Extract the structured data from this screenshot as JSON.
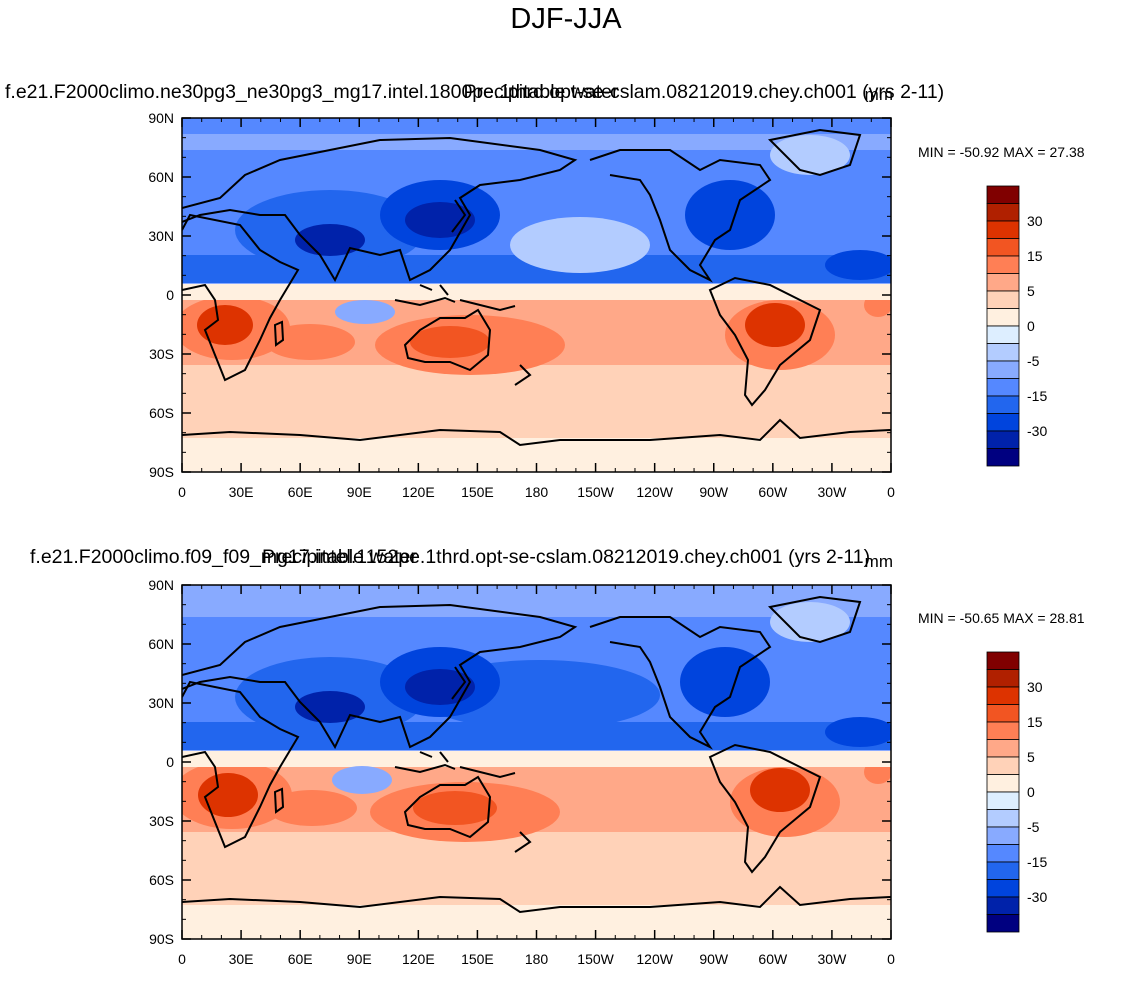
{
  "figure": {
    "title": "DJF-JJA"
  },
  "colorbar": {
    "colors": [
      "#000080",
      "#0022aa",
      "#0044dd",
      "#2266ee",
      "#5588ff",
      "#88aaff",
      "#b3ccff",
      "#ddeeff",
      "#fff0e0",
      "#ffd2b8",
      "#ffa888",
      "#ff7f55",
      "#f25522",
      "#dd3300",
      "#b02000",
      "#800000"
    ],
    "labels": [
      "-30",
      "-15",
      "-5",
      "0",
      "5",
      "15",
      "30"
    ]
  },
  "axes": {
    "lon_ticks": [
      "0",
      "30E",
      "60E",
      "90E",
      "120E",
      "150E",
      "180",
      "150W",
      "120W",
      "90W",
      "60W",
      "30W",
      "0"
    ],
    "lat_ticks": [
      "90N",
      "60N",
      "30N",
      "0",
      "30S",
      "60S",
      "90S"
    ],
    "xlim": [
      0,
      360
    ],
    "ylim": [
      -90,
      90
    ]
  },
  "chart_data": [
    {
      "type": "heatmap",
      "variable": "Precipitable water",
      "units": "mm",
      "case": "f.e21.F2000climo.ne30pg3_ne30pg3_mg17.intel.1800pe.1thrd.opt-se-cslam.08212019.chey.ch001 (yrs 2-11)",
      "min_max_text": "MIN = -50.92 MAX =  27.38",
      "min": -50.92,
      "max": 27.38,
      "grid": "lon 0-360, lat -90..90"
    },
    {
      "type": "heatmap",
      "variable": "Precipitable water",
      "units": "mm",
      "case": "f.e21.F2000climo.f09_f09_mg17.intel.1152pe.1thrd.opt-se-cslam.08212019.chey.ch001 (yrs 2-11)",
      "min_max_text": "MIN = -50.65 MAX =  28.81",
      "min": -50.65,
      "max": 28.81,
      "grid": "lon 0-360, lat -90..90"
    }
  ]
}
